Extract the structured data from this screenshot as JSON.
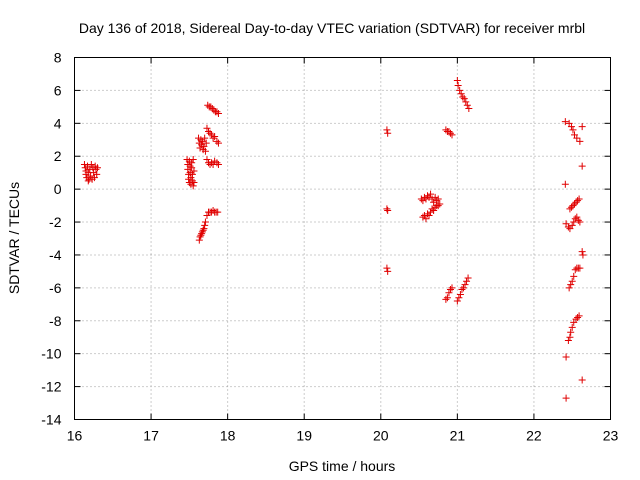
{
  "chart_data": {
    "type": "scatter",
    "title": "Day 136 of 2018, Sidereal Day-to-day VTEC variation (SDTVAR) for receiver mrbl",
    "xlabel": "GPS time / hours",
    "ylabel": "SDTVAR / TECUs",
    "xlim": [
      16,
      23
    ],
    "ylim": [
      -14,
      8
    ],
    "xticks": [
      "16",
      "17",
      "18",
      "19",
      "20",
      "21",
      "22",
      "23"
    ],
    "yticks": [
      "8",
      "6",
      "4",
      "2",
      "0",
      "-2",
      "-4",
      "-6",
      "-8",
      "-10",
      "-12",
      "-14"
    ],
    "xtick_values": [
      16,
      17,
      18,
      19,
      20,
      21,
      22,
      23
    ],
    "ytick_values": [
      8,
      6,
      4,
      2,
      0,
      -2,
      -4,
      -6,
      -8,
      -10,
      -12,
      -14
    ],
    "grid": true,
    "marker": "+",
    "color": "#e00000",
    "series": [
      {
        "name": "SDTVAR",
        "points": [
          [
            16.13,
            1.5
          ],
          [
            16.14,
            1.3
          ],
          [
            16.15,
            1.1
          ],
          [
            16.15,
            0.9
          ],
          [
            16.16,
            0.7
          ],
          [
            16.17,
            1.4
          ],
          [
            16.18,
            1.0
          ],
          [
            16.19,
            0.6
          ],
          [
            16.2,
            1.2
          ],
          [
            16.21,
            0.8
          ],
          [
            16.22,
            1.5
          ],
          [
            16.23,
            0.6
          ],
          [
            16.24,
            1.3
          ],
          [
            16.25,
            1.0
          ],
          [
            16.26,
            0.7
          ],
          [
            16.27,
            1.4
          ],
          [
            16.28,
            1.2
          ],
          [
            16.29,
            0.9
          ],
          [
            16.3,
            1.3
          ],
          [
            16.18,
            0.5
          ],
          [
            17.47,
            1.8
          ],
          [
            17.48,
            1.5
          ],
          [
            17.48,
            1.2
          ],
          [
            17.49,
            0.9
          ],
          [
            17.49,
            0.6
          ],
          [
            17.5,
            0.4
          ],
          [
            17.5,
            1.7
          ],
          [
            17.51,
            1.4
          ],
          [
            17.51,
            1.0
          ],
          [
            17.52,
            0.7
          ],
          [
            17.52,
            0.3
          ],
          [
            17.53,
            1.6
          ],
          [
            17.53,
            1.3
          ],
          [
            17.54,
            0.9
          ],
          [
            17.54,
            0.5
          ],
          [
            17.55,
            0.2
          ],
          [
            17.55,
            1.8
          ],
          [
            17.56,
            1.1
          ],
          [
            17.56,
            0.4
          ],
          [
            17.63,
            -3.1
          ],
          [
            17.64,
            -2.9
          ],
          [
            17.65,
            -2.8
          ],
          [
            17.66,
            -2.7
          ],
          [
            17.67,
            -2.6
          ],
          [
            17.68,
            -2.5
          ],
          [
            17.69,
            -2.4
          ],
          [
            17.7,
            -2.2
          ],
          [
            17.71,
            -2.0
          ],
          [
            17.62,
            3.1
          ],
          [
            17.63,
            2.8
          ],
          [
            17.64,
            2.5
          ],
          [
            17.65,
            3.0
          ],
          [
            17.66,
            2.7
          ],
          [
            17.67,
            2.9
          ],
          [
            17.68,
            2.4
          ],
          [
            17.69,
            2.6
          ],
          [
            17.7,
            3.1
          ],
          [
            17.71,
            2.3
          ],
          [
            17.72,
            2.8
          ],
          [
            17.73,
            -1.6
          ],
          [
            17.75,
            -1.4
          ],
          [
            17.77,
            -1.4
          ],
          [
            17.79,
            -1.4
          ],
          [
            17.81,
            -1.3
          ],
          [
            17.83,
            -1.4
          ],
          [
            17.85,
            -1.4
          ],
          [
            17.87,
            -1.4
          ],
          [
            17.73,
            1.8
          ],
          [
            17.75,
            1.6
          ],
          [
            17.77,
            1.5
          ],
          [
            17.79,
            1.6
          ],
          [
            17.81,
            1.5
          ],
          [
            17.83,
            1.7
          ],
          [
            17.86,
            1.6
          ],
          [
            17.88,
            1.5
          ],
          [
            17.73,
            3.7
          ],
          [
            17.75,
            3.5
          ],
          [
            17.77,
            3.4
          ],
          [
            17.79,
            3.3
          ],
          [
            17.81,
            3.1
          ],
          [
            17.83,
            3.2
          ],
          [
            17.86,
            2.9
          ],
          [
            17.88,
            2.8
          ],
          [
            17.74,
            5.1
          ],
          [
            17.76,
            5.0
          ],
          [
            17.78,
            5.0
          ],
          [
            17.8,
            4.9
          ],
          [
            17.82,
            4.8
          ],
          [
            17.84,
            4.7
          ],
          [
            17.86,
            4.7
          ],
          [
            17.88,
            4.6
          ],
          [
            20.08,
            3.6
          ],
          [
            20.09,
            3.4
          ],
          [
            20.08,
            -1.2
          ],
          [
            20.09,
            -1.3
          ],
          [
            20.08,
            -4.8
          ],
          [
            20.09,
            -5.0
          ],
          [
            20.55,
            -1.7
          ],
          [
            20.57,
            -1.6
          ],
          [
            20.59,
            -1.8
          ],
          [
            20.61,
            -1.5
          ],
          [
            20.63,
            -1.6
          ],
          [
            20.65,
            -1.4
          ],
          [
            20.67,
            -1.2
          ],
          [
            20.69,
            -1.3
          ],
          [
            20.71,
            -1.1
          ],
          [
            20.73,
            -1.0
          ],
          [
            20.53,
            -0.6
          ],
          [
            20.55,
            -0.7
          ],
          [
            20.57,
            -0.5
          ],
          [
            20.59,
            -0.6
          ],
          [
            20.61,
            -0.4
          ],
          [
            20.63,
            -0.5
          ],
          [
            20.65,
            -0.3
          ],
          [
            20.67,
            -0.6
          ],
          [
            20.69,
            -0.8
          ],
          [
            20.71,
            -0.5
          ],
          [
            20.73,
            -0.7
          ],
          [
            20.75,
            -0.6
          ],
          [
            20.77,
            -0.9
          ],
          [
            20.75,
            -1.0
          ],
          [
            20.85,
            3.6
          ],
          [
            20.87,
            3.5
          ],
          [
            20.89,
            3.5
          ],
          [
            20.91,
            3.4
          ],
          [
            20.93,
            3.3
          ],
          [
            20.85,
            -6.7
          ],
          [
            20.87,
            -6.6
          ],
          [
            20.89,
            -6.3
          ],
          [
            20.91,
            -6.1
          ],
          [
            20.93,
            -6.0
          ],
          [
            21.0,
            6.6
          ],
          [
            21.01,
            6.3
          ],
          [
            21.03,
            6.0
          ],
          [
            21.05,
            5.8
          ],
          [
            21.07,
            5.6
          ],
          [
            21.09,
            5.5
          ],
          [
            21.11,
            5.3
          ],
          [
            21.13,
            5.1
          ],
          [
            21.15,
            4.9
          ],
          [
            21.0,
            -6.8
          ],
          [
            21.02,
            -6.6
          ],
          [
            21.04,
            -6.4
          ],
          [
            21.06,
            -6.1
          ],
          [
            21.08,
            -6.0
          ],
          [
            21.1,
            -5.8
          ],
          [
            21.12,
            -5.6
          ],
          [
            21.14,
            -5.4
          ],
          [
            22.41,
            4.1
          ],
          [
            22.46,
            4.0
          ],
          [
            22.49,
            3.8
          ],
          [
            22.51,
            3.6
          ],
          [
            22.53,
            3.3
          ],
          [
            22.56,
            3.1
          ],
          [
            22.6,
            2.9
          ],
          [
            22.63,
            3.8
          ],
          [
            22.63,
            1.4
          ],
          [
            22.41,
            0.3
          ],
          [
            22.42,
            -2.1
          ],
          [
            22.45,
            -2.3
          ],
          [
            22.47,
            -2.4
          ],
          [
            22.5,
            -2.2
          ],
          [
            22.52,
            -2.0
          ],
          [
            22.54,
            -1.8
          ],
          [
            22.56,
            -1.7
          ],
          [
            22.58,
            -1.9
          ],
          [
            22.6,
            -2.0
          ],
          [
            22.47,
            -1.2
          ],
          [
            22.49,
            -1.1
          ],
          [
            22.51,
            -1.0
          ],
          [
            22.53,
            -0.9
          ],
          [
            22.55,
            -0.8
          ],
          [
            22.57,
            -0.7
          ],
          [
            22.59,
            -0.6
          ],
          [
            22.63,
            -3.8
          ],
          [
            22.64,
            -4.0
          ],
          [
            22.46,
            -6.0
          ],
          [
            22.48,
            -5.8
          ],
          [
            22.5,
            -5.6
          ],
          [
            22.52,
            -5.3
          ],
          [
            22.54,
            -4.9
          ],
          [
            22.56,
            -4.8
          ],
          [
            22.58,
            -4.8
          ],
          [
            22.6,
            -4.8
          ],
          [
            22.45,
            -9.2
          ],
          [
            22.47,
            -9.0
          ],
          [
            22.48,
            -8.7
          ],
          [
            22.5,
            -8.4
          ],
          [
            22.52,
            -8.1
          ],
          [
            22.55,
            -7.9
          ],
          [
            22.57,
            -7.8
          ],
          [
            22.59,
            -7.7
          ],
          [
            22.42,
            -10.2
          ],
          [
            22.63,
            -11.6
          ],
          [
            22.42,
            -12.7
          ]
        ]
      }
    ]
  }
}
